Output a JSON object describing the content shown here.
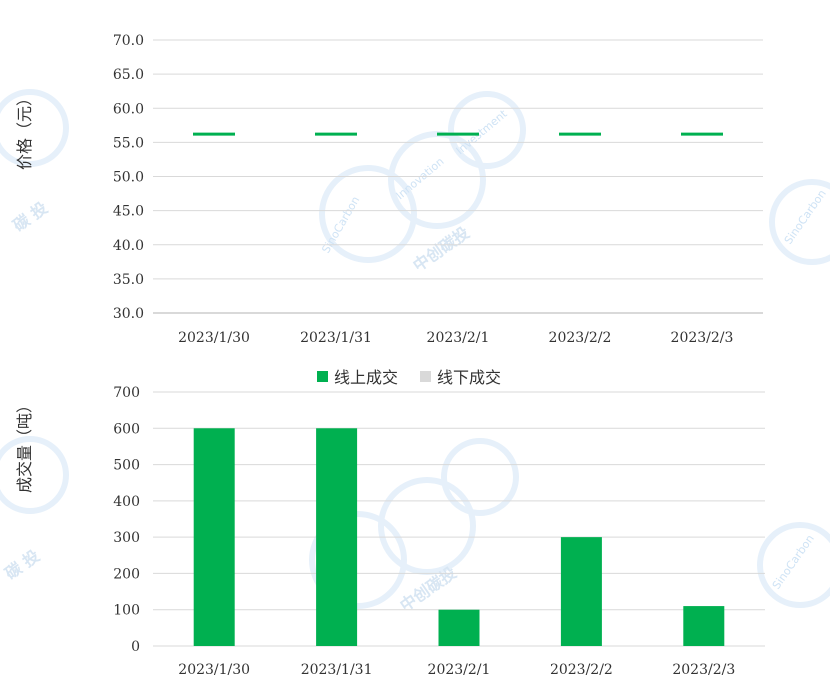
{
  "chart_data": [
    {
      "type": "line",
      "ylabel": "价格（元）",
      "categories": [
        "2023/1/30",
        "2023/1/31",
        "2023/2/1",
        "2023/2/2",
        "2023/2/3"
      ],
      "ylim": [
        30.0,
        70.0
      ],
      "yticks": [
        "30.0",
        "35.0",
        "40.0",
        "45.0",
        "50.0",
        "55.0",
        "60.0",
        "65.0",
        "70.0"
      ],
      "series": [
        {
          "values": [
            56.2,
            56.2,
            56.2,
            56.2,
            56.2
          ],
          "color": "#00b050"
        }
      ],
      "grid": true
    },
    {
      "type": "bar",
      "ylabel": "成交量（吨）",
      "categories": [
        "2023/1/30",
        "2023/1/31",
        "2023/2/1",
        "2023/2/2",
        "2023/2/3"
      ],
      "ylim": [
        0,
        700
      ],
      "yticks": [
        "0",
        "100",
        "200",
        "300",
        "400",
        "500",
        "600",
        "700"
      ],
      "legend_position": "top-center",
      "series": [
        {
          "name": "线上成交",
          "values": [
            600,
            600,
            100,
            300,
            110
          ],
          "color": "#00b050"
        },
        {
          "name": "线下成交",
          "values": [
            0,
            0,
            0,
            0,
            0
          ],
          "color": "#d9d9d9"
        }
      ],
      "grid": true
    }
  ],
  "watermark": {
    "cn": "中创碳投",
    "cn_short": "碳 投",
    "en1": "SinoCarbon",
    "en2": "Innovation",
    "en3": "Investment"
  }
}
